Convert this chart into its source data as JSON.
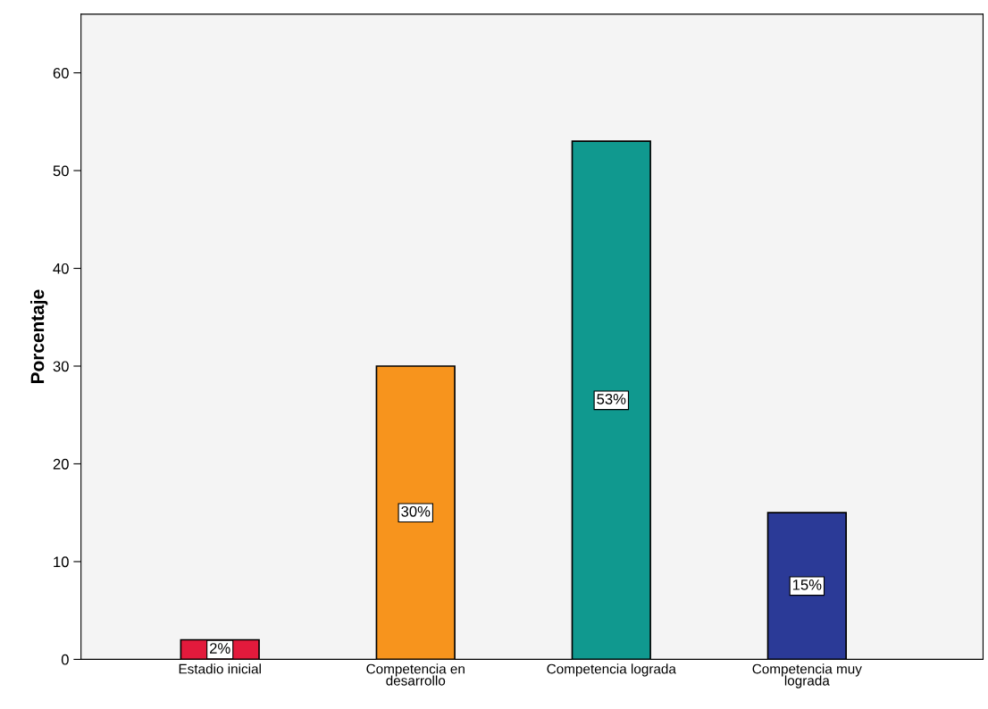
{
  "chart_data": {
    "type": "bar",
    "ylabel": "Porcentaje",
    "categories": [
      "Estadio inicial",
      "Competencia en\ndesarrollo",
      "Competencia lograda",
      "Competencia muy\nlograda"
    ],
    "values": [
      2,
      30,
      53,
      15
    ],
    "colors": [
      "#e31a3c",
      "#f7941d",
      "#10998f",
      "#2b3a97"
    ],
    "value_labels": [
      "2%",
      "30%",
      "53%",
      "15%"
    ],
    "ylim": [
      0,
      66
    ],
    "yticks": [
      0,
      10,
      20,
      30,
      40,
      50,
      60
    ],
    "grid": false,
    "legend": false
  }
}
